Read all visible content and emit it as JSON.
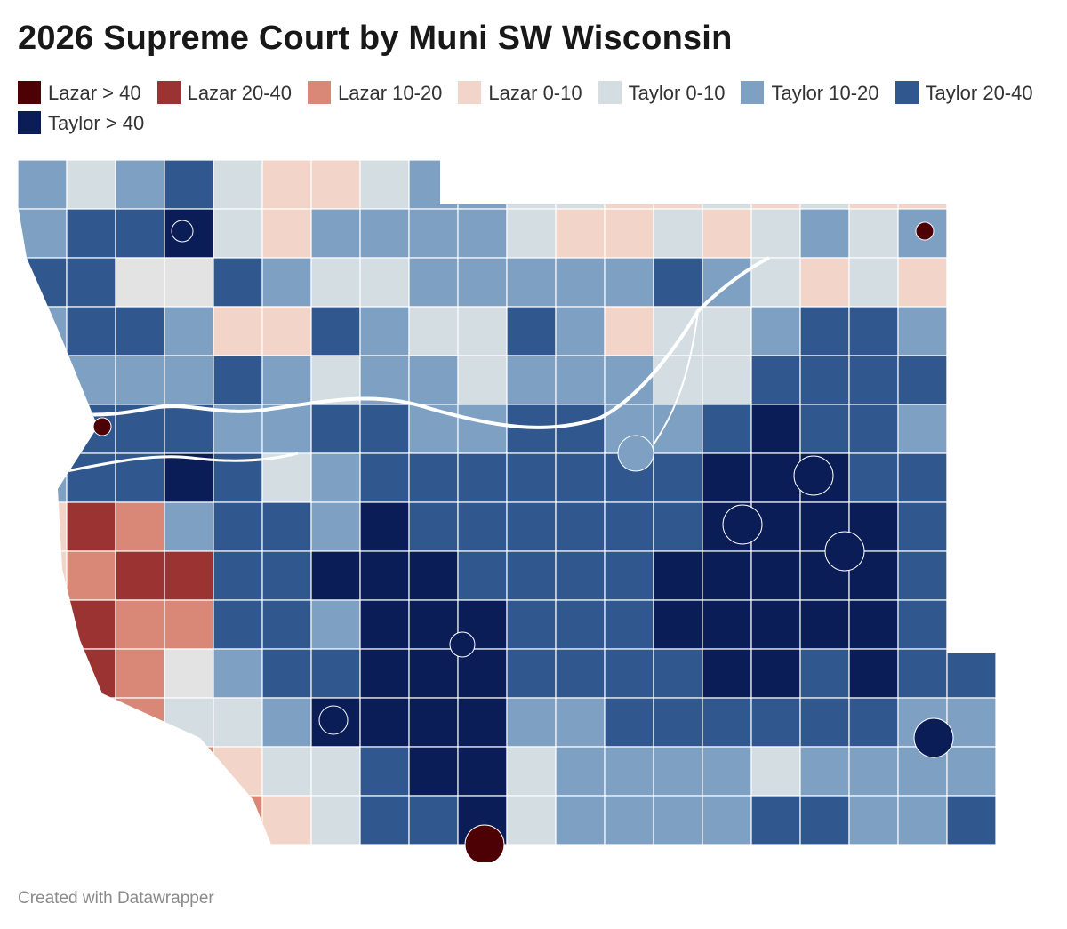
{
  "title": "2026 Supreme Court by Muni SW Wisconsin",
  "legend": [
    {
      "label": "Lazar > 40",
      "color": "#4e0104"
    },
    {
      "label": "Lazar 20-40",
      "color": "#9b3333"
    },
    {
      "label": "Lazar 10-20",
      "color": "#d98878"
    },
    {
      "label": "Lazar 0-10",
      "color": "#f3d4c8"
    },
    {
      "label": "Taylor 0-10",
      "color": "#d4dde2"
    },
    {
      "label": "Taylor 10-20",
      "color": "#7ea0c2"
    },
    {
      "label": "Taylor 20-40",
      "color": "#30588f"
    },
    {
      "label": "Taylor > 40",
      "color": "#0b1d57"
    }
  ],
  "no_data_color": "#e3e3e3",
  "credit": "Created with Datawrapper"
}
